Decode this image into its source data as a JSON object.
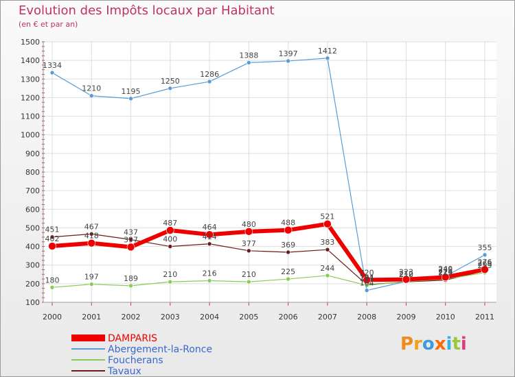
{
  "header": {
    "title": "Evolution des Impôts locaux par Habitant",
    "subtitle": "(en € et par an)"
  },
  "brand": {
    "letters": [
      "P",
      "r",
      "o",
      "x",
      "i",
      "t",
      "i"
    ],
    "colors": [
      "#f08a1c",
      "#f0a21c",
      "#3a9be0",
      "#ff6a00",
      "#38b0e0",
      "#9ac83a",
      "#e03a7c"
    ]
  },
  "chart_data": {
    "type": "line",
    "title": "Evolution des Impôts locaux par Habitant",
    "subtitle": "(en € et par an)",
    "xlabel": "",
    "ylabel": "",
    "x": [
      2000,
      2001,
      2002,
      2003,
      2004,
      2005,
      2006,
      2007,
      2008,
      2009,
      2010,
      2011
    ],
    "ylim": [
      100,
      1500
    ],
    "yticks": [
      100,
      200,
      300,
      400,
      500,
      600,
      700,
      800,
      900,
      1000,
      1100,
      1200,
      1300,
      1400,
      1500
    ],
    "grid": true,
    "legend": "bottom-left",
    "series": [
      {
        "name": "Tavaux",
        "color": "#6b1a1a",
        "width": 1.2,
        "values": [
          451,
          467,
          437,
          400,
          414,
          377,
          369,
          383,
          194,
          210,
          219,
          269
        ],
        "labels": [
          "451",
          "467",
          "437",
          "400",
          "414",
          "377",
          "369",
          "383",
          "194",
          "210",
          "219",
          "269"
        ],
        "label_pos": "above"
      },
      {
        "name": "Foucherans",
        "color": "#88cc55",
        "width": 1.2,
        "values": [
          180,
          197,
          189,
          210,
          216,
          210,
          225,
          244,
          191,
          212,
          224,
          259
        ],
        "labels": [
          "180",
          "197",
          "189",
          "210",
          "216",
          "210",
          "225",
          "244",
          "191",
          "212",
          "224",
          "259"
        ],
        "label_pos": "above"
      },
      {
        "name": "Abergement-la-Ronce",
        "color": "#5a9bd5",
        "width": 1.2,
        "values": [
          1334,
          1210,
          1195,
          1250,
          1286,
          1388,
          1397,
          1412,
          164,
          212,
          240,
          355
        ],
        "labels": [
          "1334",
          "1210",
          "1195",
          "1250",
          "1286",
          "1388",
          "1397",
          "1412",
          "164",
          "212",
          "240",
          "355"
        ],
        "label_pos": "above"
      },
      {
        "name": "DAMPARIS",
        "color": "#ee0000",
        "width": 6,
        "values": [
          402,
          418,
          397,
          487,
          464,
          480,
          488,
          521,
          220,
          223,
          235,
          276
        ],
        "labels": [
          "402",
          "418",
          "397",
          "487",
          "464",
          "480",
          "488",
          "521",
          "220",
          "223",
          "235",
          "276"
        ],
        "label_pos": "above"
      }
    ]
  }
}
